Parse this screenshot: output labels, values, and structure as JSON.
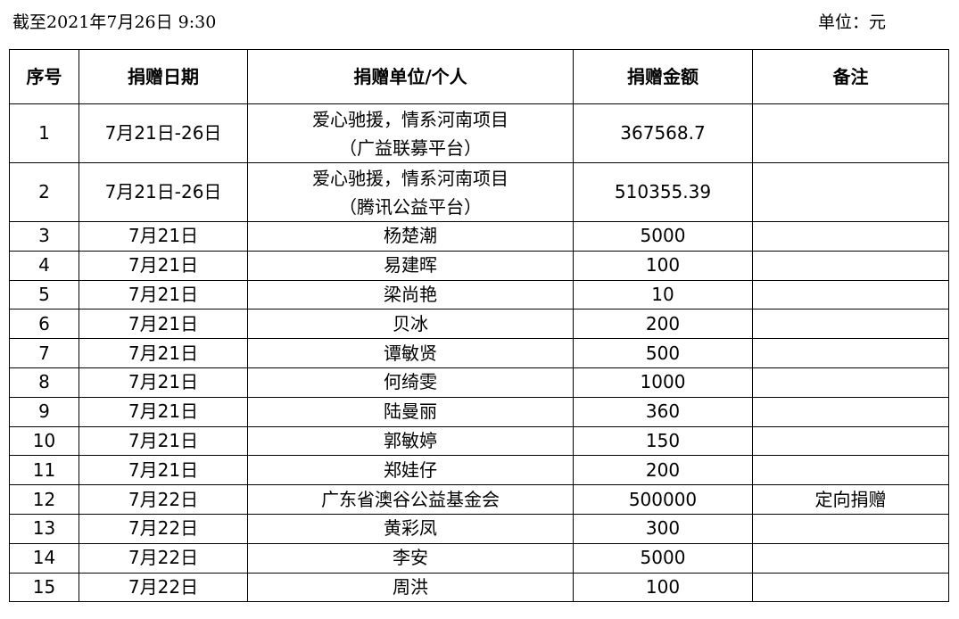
{
  "header": {
    "as_of": "截至2021年7月26日 9:30",
    "unit": "单位：元"
  },
  "table": {
    "columns": [
      "序号",
      "捐赠日期",
      "捐赠单位/个人",
      "捐赠金额",
      "备注"
    ],
    "rows": [
      {
        "no": "1",
        "date": "7月21日-26日",
        "donor": "爱心驰援，情系河南项目",
        "donor2": "（广益联募平台）",
        "amount": "367568.7",
        "note": ""
      },
      {
        "no": "2",
        "date": "7月21日-26日",
        "donor": "爱心驰援，情系河南项目",
        "donor2": "（腾讯公益平台）",
        "amount": "510355.39",
        "note": ""
      },
      {
        "no": "3",
        "date": "7月21日",
        "donor": "杨楚潮",
        "amount": "5000",
        "note": ""
      },
      {
        "no": "4",
        "date": "7月21日",
        "donor": "易建晖",
        "amount": "100",
        "note": ""
      },
      {
        "no": "5",
        "date": "7月21日",
        "donor": "梁尚艳",
        "amount": "10",
        "note": ""
      },
      {
        "no": "6",
        "date": "7月21日",
        "donor": "贝冰",
        "amount": "200",
        "note": ""
      },
      {
        "no": "7",
        "date": "7月21日",
        "donor": "谭敏贤",
        "amount": "500",
        "note": ""
      },
      {
        "no": "8",
        "date": "7月21日",
        "donor": "何绮雯",
        "amount": "1000",
        "note": ""
      },
      {
        "no": "9",
        "date": "7月21日",
        "donor": "陆曼丽",
        "amount": "360",
        "note": ""
      },
      {
        "no": "10",
        "date": "7月21日",
        "donor": "郭敏婷",
        "amount": "150",
        "note": ""
      },
      {
        "no": "11",
        "date": "7月21日",
        "donor": "郑娃仔",
        "amount": "200",
        "note": ""
      },
      {
        "no": "12",
        "date": "7月22日",
        "donor": "广东省澳谷公益基金会",
        "amount": "500000",
        "note": "定向捐赠"
      },
      {
        "no": "13",
        "date": "7月22日",
        "donor": "黄彩凤",
        "amount": "300",
        "note": ""
      },
      {
        "no": "14",
        "date": "7月22日",
        "donor": "李安",
        "amount": "5000",
        "note": ""
      },
      {
        "no": "15",
        "date": "7月22日",
        "donor": "周洪",
        "amount": "100",
        "note": ""
      }
    ]
  }
}
